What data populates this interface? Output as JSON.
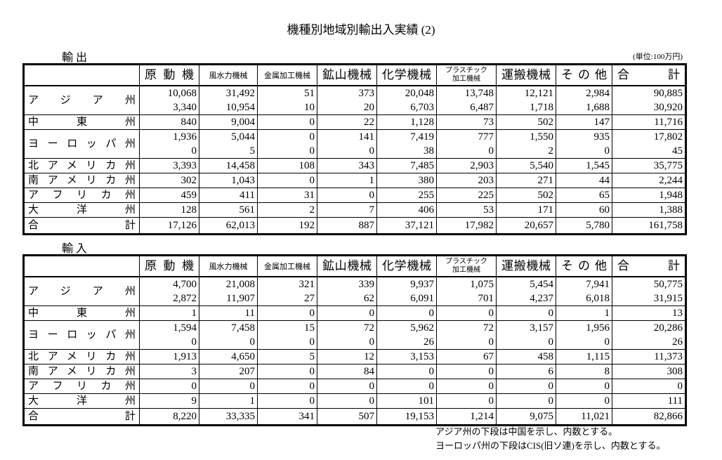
{
  "title": "機種別地域別輸出入実績 (2)",
  "unit": "(単位:100万円)",
  "tables": [
    {
      "label": "輸 出",
      "columns": [
        "",
        "原動機",
        "風水力機械",
        "金属加工機械",
        "鉱山機械",
        "化学機械",
        [
          "プラスチック",
          "加工機械"
        ],
        "運搬機械",
        "その他",
        "合計"
      ],
      "rows": [
        {
          "region": "アジア州",
          "lines": [
            [
              "10,068",
              "31,492",
              "51",
              "373",
              "20,048",
              "13,748",
              "12,121",
              "2,984",
              "90,885"
            ],
            [
              "3,340",
              "10,954",
              "10",
              "20",
              "6,703",
              "6,487",
              "1,718",
              "1,688",
              "30,920"
            ]
          ]
        },
        {
          "region": "中東州",
          "lines": [
            [
              "840",
              "9,004",
              "0",
              "22",
              "1,128",
              "73",
              "502",
              "147",
              "11,716"
            ]
          ]
        },
        {
          "region": "ヨーロッパ州",
          "lines": [
            [
              "1,936",
              "5,044",
              "0",
              "141",
              "7,419",
              "777",
              "1,550",
              "935",
              "17,802"
            ],
            [
              "0",
              "5",
              "0",
              "0",
              "38",
              "0",
              "2",
              "0",
              "45"
            ]
          ]
        },
        {
          "region": "北アメリカ州",
          "lines": [
            [
              "3,393",
              "14,458",
              "108",
              "343",
              "7,485",
              "2,903",
              "5,540",
              "1,545",
              "35,775"
            ]
          ]
        },
        {
          "region": "南アメリカ州",
          "lines": [
            [
              "302",
              "1,043",
              "0",
              "1",
              "380",
              "203",
              "271",
              "44",
              "2,244"
            ]
          ]
        },
        {
          "region": "アフリカ州",
          "lines": [
            [
              "459",
              "411",
              "31",
              "0",
              "255",
              "225",
              "502",
              "65",
              "1,948"
            ]
          ]
        },
        {
          "region": "大洋州",
          "lines": [
            [
              "128",
              "561",
              "2",
              "7",
              "406",
              "53",
              "171",
              "60",
              "1,388"
            ]
          ]
        },
        {
          "region": "合計",
          "lines": [
            [
              "17,126",
              "62,013",
              "192",
              "887",
              "37,121",
              "17,982",
              "20,657",
              "5,780",
              "161,758"
            ]
          ]
        }
      ]
    },
    {
      "label": "輸 入",
      "columns": [
        "",
        "原動機",
        "風水力機械",
        "金属加工機械",
        "鉱山機械",
        "化学機械",
        [
          "プラスチック",
          "加工機械"
        ],
        "運搬機械",
        "その他",
        "合計"
      ],
      "rows": [
        {
          "region": "アジア州",
          "lines": [
            [
              "4,700",
              "21,008",
              "321",
              "339",
              "9,937",
              "1,075",
              "5,454",
              "7,941",
              "50,775"
            ],
            [
              "2,872",
              "11,907",
              "27",
              "62",
              "6,091",
              "701",
              "4,237",
              "6,018",
              "31,915"
            ]
          ]
        },
        {
          "region": "中東州",
          "lines": [
            [
              "1",
              "11",
              "0",
              "0",
              "0",
              "0",
              "0",
              "1",
              "13"
            ]
          ]
        },
        {
          "region": "ヨーロッパ州",
          "lines": [
            [
              "1,594",
              "7,458",
              "15",
              "72",
              "5,962",
              "72",
              "3,157",
              "1,956",
              "20,286"
            ],
            [
              "0",
              "0",
              "0",
              "0",
              "26",
              "0",
              "0",
              "0",
              "26"
            ]
          ]
        },
        {
          "region": "北アメリカ州",
          "lines": [
            [
              "1,913",
              "4,650",
              "5",
              "12",
              "3,153",
              "67",
              "458",
              "1,115",
              "11,373"
            ]
          ]
        },
        {
          "region": "南アメリカ州",
          "lines": [
            [
              "3",
              "207",
              "0",
              "84",
              "0",
              "0",
              "6",
              "8",
              "308"
            ]
          ]
        },
        {
          "region": "アフリカ州",
          "lines": [
            [
              "0",
              "0",
              "0",
              "0",
              "0",
              "0",
              "0",
              "0",
              "0"
            ]
          ]
        },
        {
          "region": "大洋州",
          "lines": [
            [
              "9",
              "1",
              "0",
              "0",
              "101",
              "0",
              "0",
              "0",
              "111"
            ]
          ]
        },
        {
          "region": "合計",
          "lines": [
            [
              "8,220",
              "33,335",
              "341",
              "507",
              "19,153",
              "1,214",
              "9,075",
              "11,021",
              "82,866"
            ]
          ]
        }
      ]
    }
  ],
  "notes": [
    "アジア州の下段は中国を示し、内数とする。",
    "ヨーロッパ州の下段はCIS(旧ソ連)を示し、内数とする。"
  ]
}
